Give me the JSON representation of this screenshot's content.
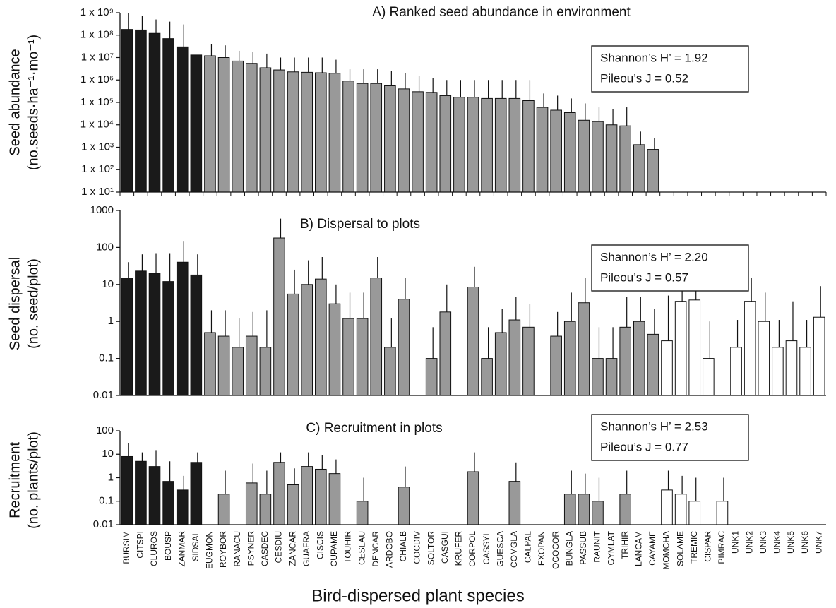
{
  "chart_data": [
    {
      "type": "bar",
      "log": true,
      "title": "A) Ranked seed abundance in environment",
      "ylabel": [
        "Seed abundance",
        "(no.seeds·ha⁻¹·mo⁻¹)"
      ],
      "stats": [
        "Shannon’s H’ = 1.92",
        "Pileou’s J = 0.52"
      ],
      "ylim": [
        10,
        1000000000.0
      ],
      "yticks": [
        {
          "value": 10,
          "label": "1 x 10¹"
        },
        {
          "value": 100,
          "label": "1 x 10²"
        },
        {
          "value": 1000,
          "label": "1 x 10³"
        },
        {
          "value": 10000.0,
          "label": "1 x 10⁴"
        },
        {
          "value": 100000.0,
          "label": "1 x 10⁵"
        },
        {
          "value": 1000000.0,
          "label": "1 x 10⁶"
        },
        {
          "value": 10000000.0,
          "label": "1 x 10⁷"
        },
        {
          "value": 100000000.0,
          "label": "1 x 10⁸"
        },
        {
          "value": 1000000000.0,
          "label": "1 x 10⁹"
        }
      ],
      "values": [
        180000000.0,
        170000000.0,
        120000000.0,
        70000000.0,
        30000000.0,
        13000000.0,
        12000000.0,
        10000000.0,
        7000000.0,
        5500000.0,
        3500000.0,
        2800000.0,
        2300000.0,
        2200000.0,
        2100000.0,
        2000000.0,
        900000.0,
        700000.0,
        700000.0,
        550000.0,
        400000.0,
        300000.0,
        280000.0,
        200000.0,
        170000.0,
        170000.0,
        150000.0,
        150000.0,
        150000.0,
        120000.0,
        60000.0,
        45000.0,
        35000.0,
        16000.0,
        14000.0,
        10000.0,
        9000.0,
        1300.0,
        800.0,
        null,
        null,
        null,
        null,
        null,
        null,
        null,
        null,
        null,
        null,
        null,
        null
      ],
      "errors": [
        1000000000.0,
        700000000.0,
        500000000.0,
        400000000.0,
        300000000.0,
        null,
        40000000.0,
        35000000.0,
        20000000.0,
        18000000.0,
        15000000.0,
        10000000.0,
        10000000.0,
        10000000.0,
        10000000.0,
        8000000.0,
        3000000.0,
        3000000.0,
        3000000.0,
        2500000.0,
        2000000.0,
        1500000.0,
        1200000.0,
        1000000.0,
        1000000.0,
        1000000.0,
        1000000.0,
        1000000.0,
        1000000.0,
        1000000.0,
        250000.0,
        200000.0,
        150000.0,
        90000.0,
        60000.0,
        50000.0,
        60000.0,
        5000.0,
        2500.0,
        null,
        null,
        null,
        null,
        null,
        null,
        null,
        null,
        null,
        null,
        null,
        null
      ]
    },
    {
      "type": "bar",
      "log": true,
      "title": "B) Dispersal to plots",
      "ylabel": [
        "Seed dispersal",
        "(no. seed/plot)"
      ],
      "stats": [
        "Shannon’s H’ = 2.20",
        "Pileou’s J = 0.57"
      ],
      "ylim": [
        0.01,
        1000
      ],
      "yticks": [
        0.01,
        0.1,
        1,
        10,
        100,
        1000
      ],
      "values": [
        15,
        23,
        20,
        12,
        40,
        18,
        0.5,
        0.4,
        0.2,
        0.4,
        0.2,
        180,
        5.5,
        10,
        14,
        3,
        1.2,
        1.2,
        15,
        0.2,
        4,
        null,
        0.1,
        1.8,
        null,
        8.5,
        0.1,
        0.5,
        1.1,
        0.7,
        null,
        0.4,
        1,
        3.2,
        0.1,
        0.1,
        0.7,
        1,
        0.45,
        0.3,
        3.5,
        3.8,
        0.1,
        null,
        0.2,
        3.5,
        1,
        0.2,
        0.3,
        0.2,
        1.3
      ],
      "errors": [
        40,
        65,
        70,
        70,
        150,
        65,
        2,
        2,
        1.2,
        1.8,
        2,
        600,
        25,
        45,
        55,
        10,
        6,
        6,
        55,
        1.2,
        15,
        null,
        0.7,
        10,
        null,
        30,
        0.7,
        2.2,
        4.5,
        3,
        null,
        1.8,
        6,
        15,
        0.7,
        0.7,
        4.5,
        4.5,
        2.2,
        5,
        22,
        25,
        1,
        null,
        1.1,
        15,
        6,
        1.1,
        3.5,
        1.1,
        9
      ]
    },
    {
      "type": "bar",
      "log": true,
      "title": "C) Recruitment in plots",
      "ylabel": [
        "Recruitment",
        "(no. plants/plot)"
      ],
      "stats": [
        "Shannon’s H’ = 2.53",
        "Pileou’s J = 0.77"
      ],
      "xlabel": "Bird-dispersed plant species",
      "ylim": [
        0.01,
        100
      ],
      "yticks": [
        0.01,
        0.1,
        1,
        10,
        100
      ],
      "categories": [
        "BURSIM",
        "CITSPI",
        "CLUROS",
        "BOUSP",
        "ZANMAR",
        "SIDSAL",
        "EUGMON",
        "ROYBOR",
        "RANACU",
        "PSYNER",
        "CASDEC",
        "CESDIU",
        "ZANCAR",
        "GUAFRA",
        "CISCIS",
        "CUPAME",
        "TOUHIR",
        "CESLAU",
        "DENCAR",
        "ARDOBO",
        "CHIALB",
        "COCDIV",
        "SOLTOR",
        "CASGUI",
        "KRUFER",
        "CORPOL",
        "CASSYL",
        "GUESCA",
        "COMGLA",
        "CALPAL",
        "EXOPAN",
        "OCOCOR",
        "BUNGLA",
        "PASSUB",
        "RAUNIT",
        "GYMLAT",
        "TRIHIR",
        "LANCAM",
        "CAYAME",
        "MOMCHA",
        "SOLAME",
        "TREMIC",
        "CISPAR",
        "PIMRAC",
        "UNK1",
        "UNK2",
        "UNK3",
        "UNK4",
        "UNK5",
        "UNK6",
        "UNK7"
      ],
      "colors": [
        "#1a1a1a",
        "#1a1a1a",
        "#1a1a1a",
        "#1a1a1a",
        "#1a1a1a",
        "#1a1a1a",
        "#999999",
        "#999999",
        "#999999",
        "#999999",
        "#999999",
        "#999999",
        "#999999",
        "#999999",
        "#999999",
        "#999999",
        "#999999",
        "#999999",
        "#999999",
        "#999999",
        "#999999",
        "#999999",
        "#999999",
        "#999999",
        "#999999",
        "#999999",
        "#999999",
        "#999999",
        "#999999",
        "#999999",
        "#999999",
        "#999999",
        "#999999",
        "#999999",
        "#999999",
        "#999999",
        "#999999",
        "#999999",
        "#999999",
        "#ffffff",
        "#ffffff",
        "#ffffff",
        "#ffffff",
        "#ffffff",
        "#ffffff",
        "#ffffff",
        "#ffffff",
        "#ffffff",
        "#ffffff",
        "#ffffff",
        "#ffffff"
      ],
      "values": [
        8,
        5,
        3,
        0.7,
        0.3,
        4.5,
        null,
        0.2,
        null,
        0.6,
        0.2,
        4.5,
        0.5,
        3,
        2.3,
        1.5,
        null,
        0.1,
        null,
        null,
        0.4,
        null,
        null,
        null,
        null,
        1.8,
        null,
        null,
        0.7,
        null,
        null,
        null,
        0.2,
        0.2,
        0.1,
        null,
        0.2,
        null,
        null,
        0.3,
        0.2,
        0.1,
        null,
        0.1,
        null,
        null,
        null,
        null,
        null,
        null,
        null
      ],
      "errors": [
        30,
        12,
        15,
        5,
        1.2,
        12,
        null,
        2,
        null,
        4,
        2,
        12,
        2.5,
        12,
        9,
        6,
        null,
        1,
        null,
        null,
        3,
        null,
        null,
        null,
        null,
        12,
        null,
        null,
        4.5,
        null,
        null,
        null,
        2,
        1.5,
        1,
        null,
        2,
        null,
        null,
        2,
        1.2,
        1,
        null,
        1,
        null,
        null,
        null,
        null,
        null,
        null,
        null
      ]
    }
  ]
}
